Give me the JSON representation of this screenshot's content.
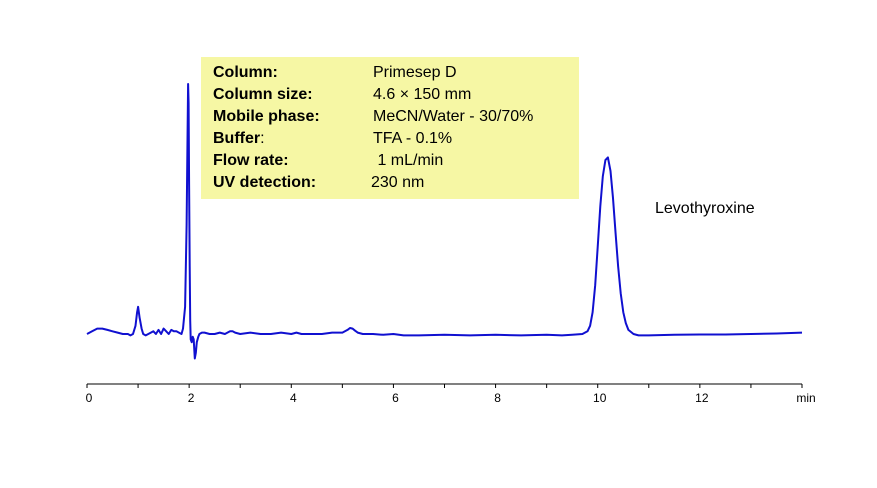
{
  "info_box": {
    "rows": [
      {
        "label": "Column:",
        "value": "Primesep D"
      },
      {
        "label": "Column size:",
        "value": "4.6 × 150 mm"
      },
      {
        "label": "Mobile phase:",
        "value": "MeCN/Water - 30/70%"
      },
      {
        "label": "Buffer",
        "label_suffix": ":",
        "value": "TFA - 0.1%"
      },
      {
        "label": "Flow rate:",
        "value": " 1 mL/min"
      },
      {
        "label": "UV detection:",
        "value": "230 nm"
      }
    ],
    "background": "#f6f7a4"
  },
  "peak_label": "Levothyroxine",
  "chart_data": {
    "type": "line",
    "title": "",
    "xlabel": "",
    "ylabel": "",
    "x_unit": "min",
    "xlim": [
      0,
      14
    ],
    "ylim": [
      -0.1,
      1.0
    ],
    "xticks": [
      0,
      2,
      4,
      6,
      8,
      10,
      12
    ],
    "xtick_labels": [
      "0",
      "2",
      "4",
      "6",
      "8",
      "10",
      "12"
    ],
    "grid": false,
    "line_color": "#1010d0",
    "series": [
      {
        "x": [
          0.0,
          0.1,
          0.2,
          0.3,
          0.4,
          0.5,
          0.6,
          0.7,
          0.8,
          0.85,
          0.9,
          0.95,
          0.98,
          1.0,
          1.03,
          1.07,
          1.1,
          1.15,
          1.2,
          1.3,
          1.35,
          1.4,
          1.45,
          1.5,
          1.55,
          1.6,
          1.65,
          1.7,
          1.75,
          1.8,
          1.85,
          1.88,
          1.92,
          1.95,
          1.97,
          1.98,
          1.99,
          2.0,
          2.01,
          2.02,
          2.03,
          2.05,
          2.07,
          2.09,
          2.11,
          2.13,
          2.15,
          2.18,
          2.2,
          2.25,
          2.3,
          2.4,
          2.5,
          2.6,
          2.7,
          2.8,
          2.85,
          2.9,
          3.0,
          3.2,
          3.4,
          3.6,
          3.8,
          4.0,
          4.1,
          4.2,
          4.4,
          4.6,
          4.8,
          5.0,
          5.1,
          5.15,
          5.2,
          5.25,
          5.3,
          5.4,
          5.6,
          5.8,
          6.0,
          6.2,
          6.5,
          7.0,
          7.5,
          8.0,
          8.5,
          9.0,
          9.3,
          9.5,
          9.7,
          9.8,
          9.85,
          9.9,
          9.95,
          10.0,
          10.05,
          10.1,
          10.15,
          10.2,
          10.25,
          10.3,
          10.35,
          10.4,
          10.45,
          10.5,
          10.55,
          10.6,
          10.7,
          10.8,
          11.0,
          11.5,
          12.0,
          12.5,
          13.0,
          13.5,
          14.0
        ],
        "y": [
          0.0,
          0.01,
          0.02,
          0.02,
          0.015,
          0.01,
          0.005,
          0.0,
          0.0,
          -0.005,
          0.0,
          0.03,
          0.08,
          0.1,
          0.06,
          0.02,
          0.0,
          -0.005,
          0.0,
          0.01,
          0.0,
          0.015,
          0.0,
          0.02,
          0.01,
          0.0,
          0.015,
          0.01,
          0.01,
          0.005,
          0.0,
          0.02,
          0.1,
          0.4,
          0.75,
          0.92,
          0.85,
          0.55,
          0.25,
          0.05,
          -0.02,
          -0.03,
          -0.01,
          -0.02,
          -0.09,
          -0.07,
          -0.03,
          -0.01,
          0.0,
          0.005,
          0.005,
          0.0,
          0.0,
          0.005,
          0.0,
          0.01,
          0.01,
          0.005,
          0.0,
          0.005,
          0.0,
          0.0,
          0.005,
          0.0,
          0.005,
          0.0,
          0.0,
          0.0,
          0.005,
          0.005,
          0.015,
          0.022,
          0.02,
          0.012,
          0.005,
          0.0,
          0.0,
          -0.003,
          0.0,
          -0.005,
          -0.005,
          -0.003,
          -0.005,
          -0.003,
          -0.005,
          -0.003,
          -0.005,
          -0.003,
          0.0,
          0.01,
          0.03,
          0.08,
          0.18,
          0.32,
          0.47,
          0.58,
          0.64,
          0.65,
          0.6,
          0.5,
          0.37,
          0.25,
          0.15,
          0.08,
          0.04,
          0.015,
          0.0,
          -0.005,
          -0.005,
          -0.003,
          -0.002,
          -0.002,
          0.0,
          0.002,
          0.005
        ]
      }
    ]
  }
}
